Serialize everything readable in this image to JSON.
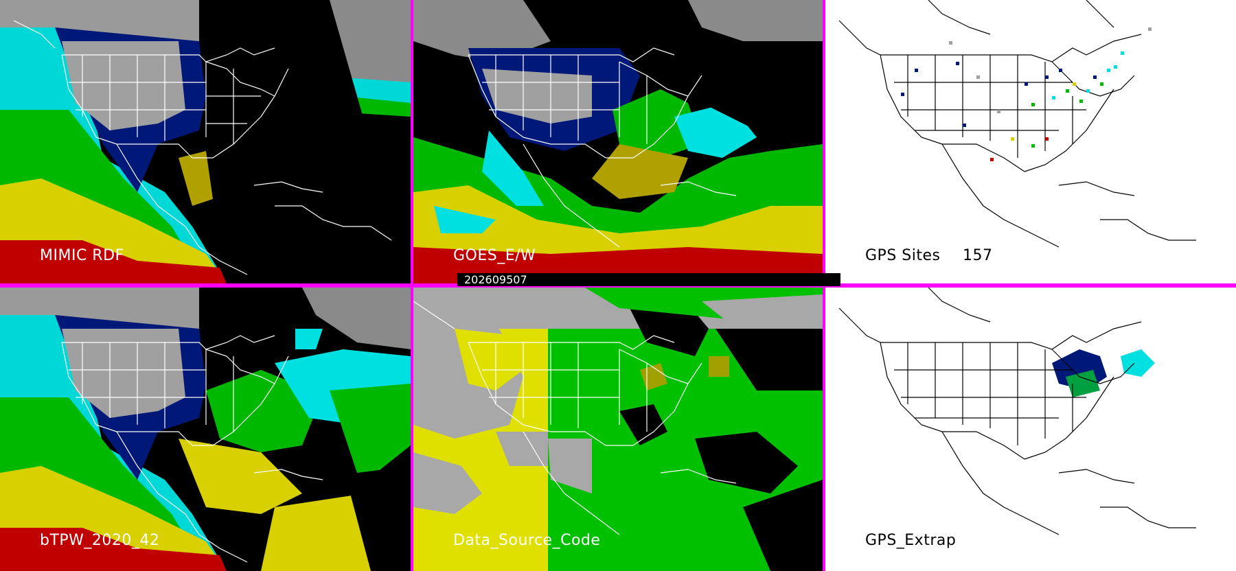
{
  "panels": {
    "mimic_label": "MIMIC RDF",
    "goes_label": "GOES_E/W",
    "gps_sites_label": "GPS Sites",
    "gps_sites_count": "157",
    "btpw_label": "bTPW_2020_42",
    "data_source_label": "Data_Source_Code",
    "gps_extrap_label": "GPS_Extrap"
  },
  "timestamp": "202609507",
  "colors": {
    "divider": "#ff00ff",
    "background": "#000000",
    "tpw_red": "#c00000",
    "tpw_yellow": "#d8d000",
    "tpw_green": "#00b800",
    "tpw_cyan": "#00e0e0",
    "tpw_blue": "#001080",
    "source_yellow": "#e0e000",
    "source_green": "#00c000",
    "source_gray": "#a8a8a8"
  }
}
